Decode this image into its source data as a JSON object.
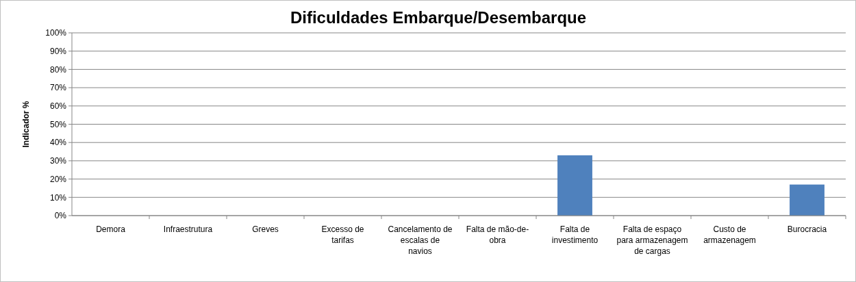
{
  "chart_data": {
    "type": "bar",
    "title": "Dificuldades Embarque/Desembarque",
    "ylabel": "Indicador %",
    "categories": [
      "Demora",
      "Infraestrutura",
      "Greves",
      "Excesso de tarifas",
      "Cancelamento de escalas de navios",
      "Falta de mão-de-obra",
      "Falta de investimento",
      "Falta de espaço para armazenagem de cargas",
      "Custo de armazenagem",
      "Burocracia"
    ],
    "values": [
      0,
      0,
      0,
      0,
      0,
      0,
      33,
      0,
      0,
      17
    ],
    "color": "#4f81bd",
    "ylim": [
      0,
      100
    ],
    "yticks": [
      {
        "value": 0,
        "label": "0%"
      },
      {
        "value": 10,
        "label": "10%"
      },
      {
        "value": 20,
        "label": "20%"
      },
      {
        "value": 30,
        "label": "30%"
      },
      {
        "value": 40,
        "label": "40%"
      },
      {
        "value": 50,
        "label": "50%"
      },
      {
        "value": 60,
        "label": "60%"
      },
      {
        "value": 70,
        "label": "70%"
      },
      {
        "value": 80,
        "label": "80%"
      },
      {
        "value": 90,
        "label": "90%"
      },
      {
        "value": 100,
        "label": "100%"
      }
    ],
    "grid": "y"
  }
}
